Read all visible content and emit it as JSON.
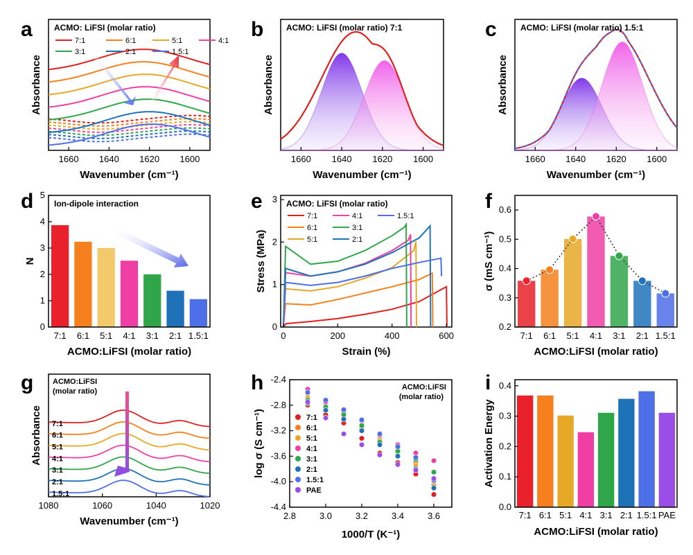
{
  "panel_letters": [
    "a",
    "b",
    "c",
    "d",
    "e",
    "f",
    "g",
    "h",
    "i"
  ],
  "colors": {
    "7:1": "#e0201e",
    "6:1": "#f5801d",
    "5:1": "#e6a826",
    "4:1": "#ef3fa5",
    "3:1": "#2fa64a",
    "2:1": "#1e73b8",
    "1.5:1": "#4d6fe8",
    "PAE": "#9b4de8"
  },
  "chart_data": [
    {
      "panel": "a",
      "type": "line",
      "title": "ACMO: LiFSI (molar ratio)",
      "xlabel": "Wavenumber (cm⁻¹)",
      "ylabel": "Absorbance",
      "xlim": [
        1670,
        1590
      ],
      "xticks": [
        "1660",
        "1640",
        "1620",
        "1600"
      ],
      "series": [
        {
          "name": "7:1",
          "peak": 1623,
          "offset": 0.83
        },
        {
          "name": "6:1",
          "peak": 1623,
          "offset": 0.73
        },
        {
          "name": "5:1",
          "peak": 1622,
          "offset": 0.63
        },
        {
          "name": "4:1",
          "peak": 1622,
          "offset": 0.53
        },
        {
          "name": "3:1",
          "peak": 1621,
          "offset": 0.43
        },
        {
          "name": "2:1",
          "peak": 1620,
          "offset": 0.33
        },
        {
          "name": "1.5:1",
          "peak": 1619,
          "offset": 0.23
        }
      ]
    },
    {
      "panel": "b",
      "type": "line",
      "title": "ACMO: LiFSI (molar ratio)  7:1",
      "xlabel": "Wavenumber (cm⁻¹)",
      "ylabel": "Absorbance",
      "xlim": [
        1670,
        1590
      ],
      "xticks": [
        "1660",
        "1640",
        "1620",
        "1600"
      ],
      "components": [
        {
          "center": 1640,
          "height": 0.78
        },
        {
          "center": 1619,
          "height": 0.72
        }
      ],
      "envelope_peak": 1633
    },
    {
      "panel": "c",
      "type": "line",
      "title": "ACMO: LiFSI (molar ratio)  1.5:1",
      "xlabel": "Wavenumber (cm⁻¹)",
      "ylabel": "Absorbance",
      "xlim": [
        1670,
        1590
      ],
      "xticks": [
        "1660",
        "1640",
        "1620",
        "1600"
      ],
      "components": [
        {
          "center": 1637,
          "height": 0.58
        },
        {
          "center": 1617,
          "height": 0.87
        }
      ],
      "envelope_peak": 1621
    },
    {
      "panel": "d",
      "type": "bar",
      "title": "Ion-dipole interaction",
      "categories": [
        "7:1",
        "6:1",
        "5:1",
        "4:1",
        "3:1",
        "2:1",
        "1.5:1"
      ],
      "values": [
        3.87,
        3.24,
        3.0,
        2.52,
        2.0,
        1.38,
        1.06
      ],
      "xlabel": "ACMO:LiFSI (molar ratio)",
      "ylabel": "N",
      "ylim": [
        0,
        5
      ],
      "yticks": [
        "0",
        "1",
        "2",
        "3",
        "4",
        "5"
      ]
    },
    {
      "panel": "e",
      "type": "line",
      "title": "ACMO: LiFSI (molar ratio)",
      "xlabel": "Strain (%)",
      "ylabel": "Stress (MPa)",
      "xlim": [
        -10,
        620
      ],
      "ylim": [
        0,
        3.1
      ],
      "xticks": [
        "0",
        "200",
        "400",
        "600"
      ],
      "yticks": [
        "0",
        "1",
        "2",
        "3"
      ],
      "legend": [
        "7:1",
        "4:1",
        "1.5:1",
        "6:1",
        "3:1",
        "5:1",
        "2:1"
      ],
      "series": [
        {
          "name": "7:1",
          "x": [
            0,
            10,
            100,
            200,
            300,
            400,
            500,
            600,
            602
          ],
          "y": [
            0,
            0.08,
            0.13,
            0.2,
            0.3,
            0.42,
            0.6,
            0.95,
            0
          ]
        },
        {
          "name": "6:1",
          "x": [
            0,
            8,
            100,
            200,
            300,
            400,
            500,
            548,
            550
          ],
          "y": [
            0,
            0.55,
            0.52,
            0.65,
            0.8,
            0.95,
            1.12,
            1.27,
            0
          ]
        },
        {
          "name": "5:1",
          "x": [
            0,
            8,
            100,
            200,
            300,
            400,
            480,
            488,
            490
          ],
          "y": [
            0,
            0.9,
            0.85,
            0.95,
            1.15,
            1.4,
            1.8,
            2.02,
            0
          ]
        },
        {
          "name": "4:1",
          "x": [
            0,
            8,
            100,
            200,
            300,
            400,
            460,
            468,
            470
          ],
          "y": [
            0,
            1.28,
            1.2,
            1.3,
            1.5,
            1.8,
            2.05,
            2.18,
            0
          ]
        },
        {
          "name": "3:1",
          "x": [
            0,
            8,
            100,
            200,
            300,
            400,
            445,
            452,
            454
          ],
          "y": [
            0,
            1.9,
            1.48,
            1.55,
            1.8,
            2.15,
            2.35,
            2.42,
            0
          ]
        },
        {
          "name": "2:1",
          "x": [
            0,
            8,
            100,
            200,
            300,
            400,
            500,
            540,
            542
          ],
          "y": [
            0,
            1.38,
            1.2,
            1.3,
            1.48,
            1.75,
            2.1,
            2.38,
            0
          ]
        },
        {
          "name": "1.5:1",
          "x": [
            0,
            8,
            100,
            200,
            300,
            400,
            500,
            580,
            582
          ],
          "y": [
            0,
            1.05,
            0.98,
            1.05,
            1.2,
            1.38,
            1.52,
            1.62,
            1.2
          ]
        }
      ]
    },
    {
      "panel": "f",
      "type": "bar",
      "categories": [
        "7:1",
        "6:1",
        "5:1",
        "4:1",
        "3:1",
        "2:1",
        "1.5:1"
      ],
      "values": [
        0.358,
        0.396,
        0.501,
        0.578,
        0.443,
        0.358,
        0.315
      ],
      "xlabel": "ACMO:LiFSI (molar ratio)",
      "ylabel": "σ (mS cm⁻¹)",
      "ylim": [
        0.2,
        0.65
      ],
      "yticks": [
        "0.2",
        "0.3",
        "0.4",
        "0.5",
        "0.6"
      ]
    },
    {
      "panel": "g",
      "type": "line",
      "title_lines": [
        "ACMO:LiFSI",
        "(molar ratio)"
      ],
      "xlabel": "Wavenumber (cm⁻¹)",
      "ylabel": "Absorbance",
      "xlim": [
        1080,
        1020
      ],
      "xticks": [
        "1080",
        "1060",
        "1040",
        "1020"
      ],
      "series": [
        {
          "name": "7:1",
          "offset": 0.78
        },
        {
          "name": "6:1",
          "offset": 0.68
        },
        {
          "name": "5:1",
          "offset": 0.58
        },
        {
          "name": "4:1",
          "offset": 0.48
        },
        {
          "name": "3:1",
          "offset": 0.38
        },
        {
          "name": "2:1",
          "offset": 0.28
        },
        {
          "name": "1.5:1",
          "offset": 0.18
        }
      ]
    },
    {
      "panel": "h",
      "type": "scatter",
      "title_lines": [
        "ACMO:LiFSI",
        "(molar ratio)"
      ],
      "xlabel": "1000/T (K⁻¹)",
      "ylabel": "log σ (S cm⁻¹)",
      "xlim": [
        2.8,
        3.7
      ],
      "ylim": [
        -4.4,
        -2.4
      ],
      "xticks": [
        "2.8",
        "3.0",
        "3.2",
        "3.4",
        "3.6"
      ],
      "yticks": [
        "-2.4",
        "-2.8",
        "-3.2",
        "-3.6",
        "-4.0",
        "-4.4"
      ],
      "x": [
        2.9,
        3.0,
        3.1,
        3.2,
        3.3,
        3.4,
        3.5,
        3.6
      ],
      "series": [
        {
          "name": "7:1",
          "values": [
            -2.8,
            -2.95,
            -3.08,
            -3.32,
            -3.55,
            -3.7,
            -3.88,
            -4.2
          ]
        },
        {
          "name": "6:1",
          "values": [
            -2.62,
            -2.85,
            -2.98,
            -3.15,
            -3.3,
            -3.5,
            -3.7,
            -4.05
          ]
        },
        {
          "name": "5:1",
          "values": [
            -2.68,
            -2.8,
            -2.92,
            -3.1,
            -3.35,
            -3.55,
            -3.75,
            -4.0
          ]
        },
        {
          "name": "4:1",
          "values": [
            -2.55,
            -2.75,
            -2.9,
            -3.05,
            -3.27,
            -3.42,
            -3.55,
            -3.67
          ]
        },
        {
          "name": "3:1",
          "values": [
            -2.72,
            -2.83,
            -2.95,
            -3.12,
            -3.38,
            -3.52,
            -3.65,
            -3.85
          ]
        },
        {
          "name": "2:1",
          "values": [
            -2.77,
            -2.88,
            -3.02,
            -3.2,
            -3.42,
            -3.6,
            -3.8,
            -4.1
          ]
        },
        {
          "name": "1.5:1",
          "values": [
            -2.6,
            -2.72,
            -2.87,
            -3.03,
            -3.25,
            -3.45,
            -3.62,
            -3.98
          ]
        },
        {
          "name": "PAE",
          "values": [
            -2.75,
            -3.0,
            -3.25,
            -3.42,
            -3.58,
            -3.73,
            -3.82,
            -3.95
          ]
        }
      ]
    },
    {
      "panel": "i",
      "type": "bar",
      "categories": [
        "7:1",
        "6:1",
        "5:1",
        "4:1",
        "3:1",
        "2:1",
        "1.5:1",
        "PAE"
      ],
      "values": [
        0.368,
        0.368,
        0.302,
        0.247,
        0.311,
        0.357,
        0.382,
        0.311
      ],
      "xlabel": "ACMO:LiFSI (molar ratio)",
      "ylabel": "Activation Energy",
      "ylim": [
        0,
        0.42
      ],
      "yticks": [
        "0.0",
        "0.1",
        "0.2",
        "0.3",
        "0.4"
      ]
    }
  ]
}
